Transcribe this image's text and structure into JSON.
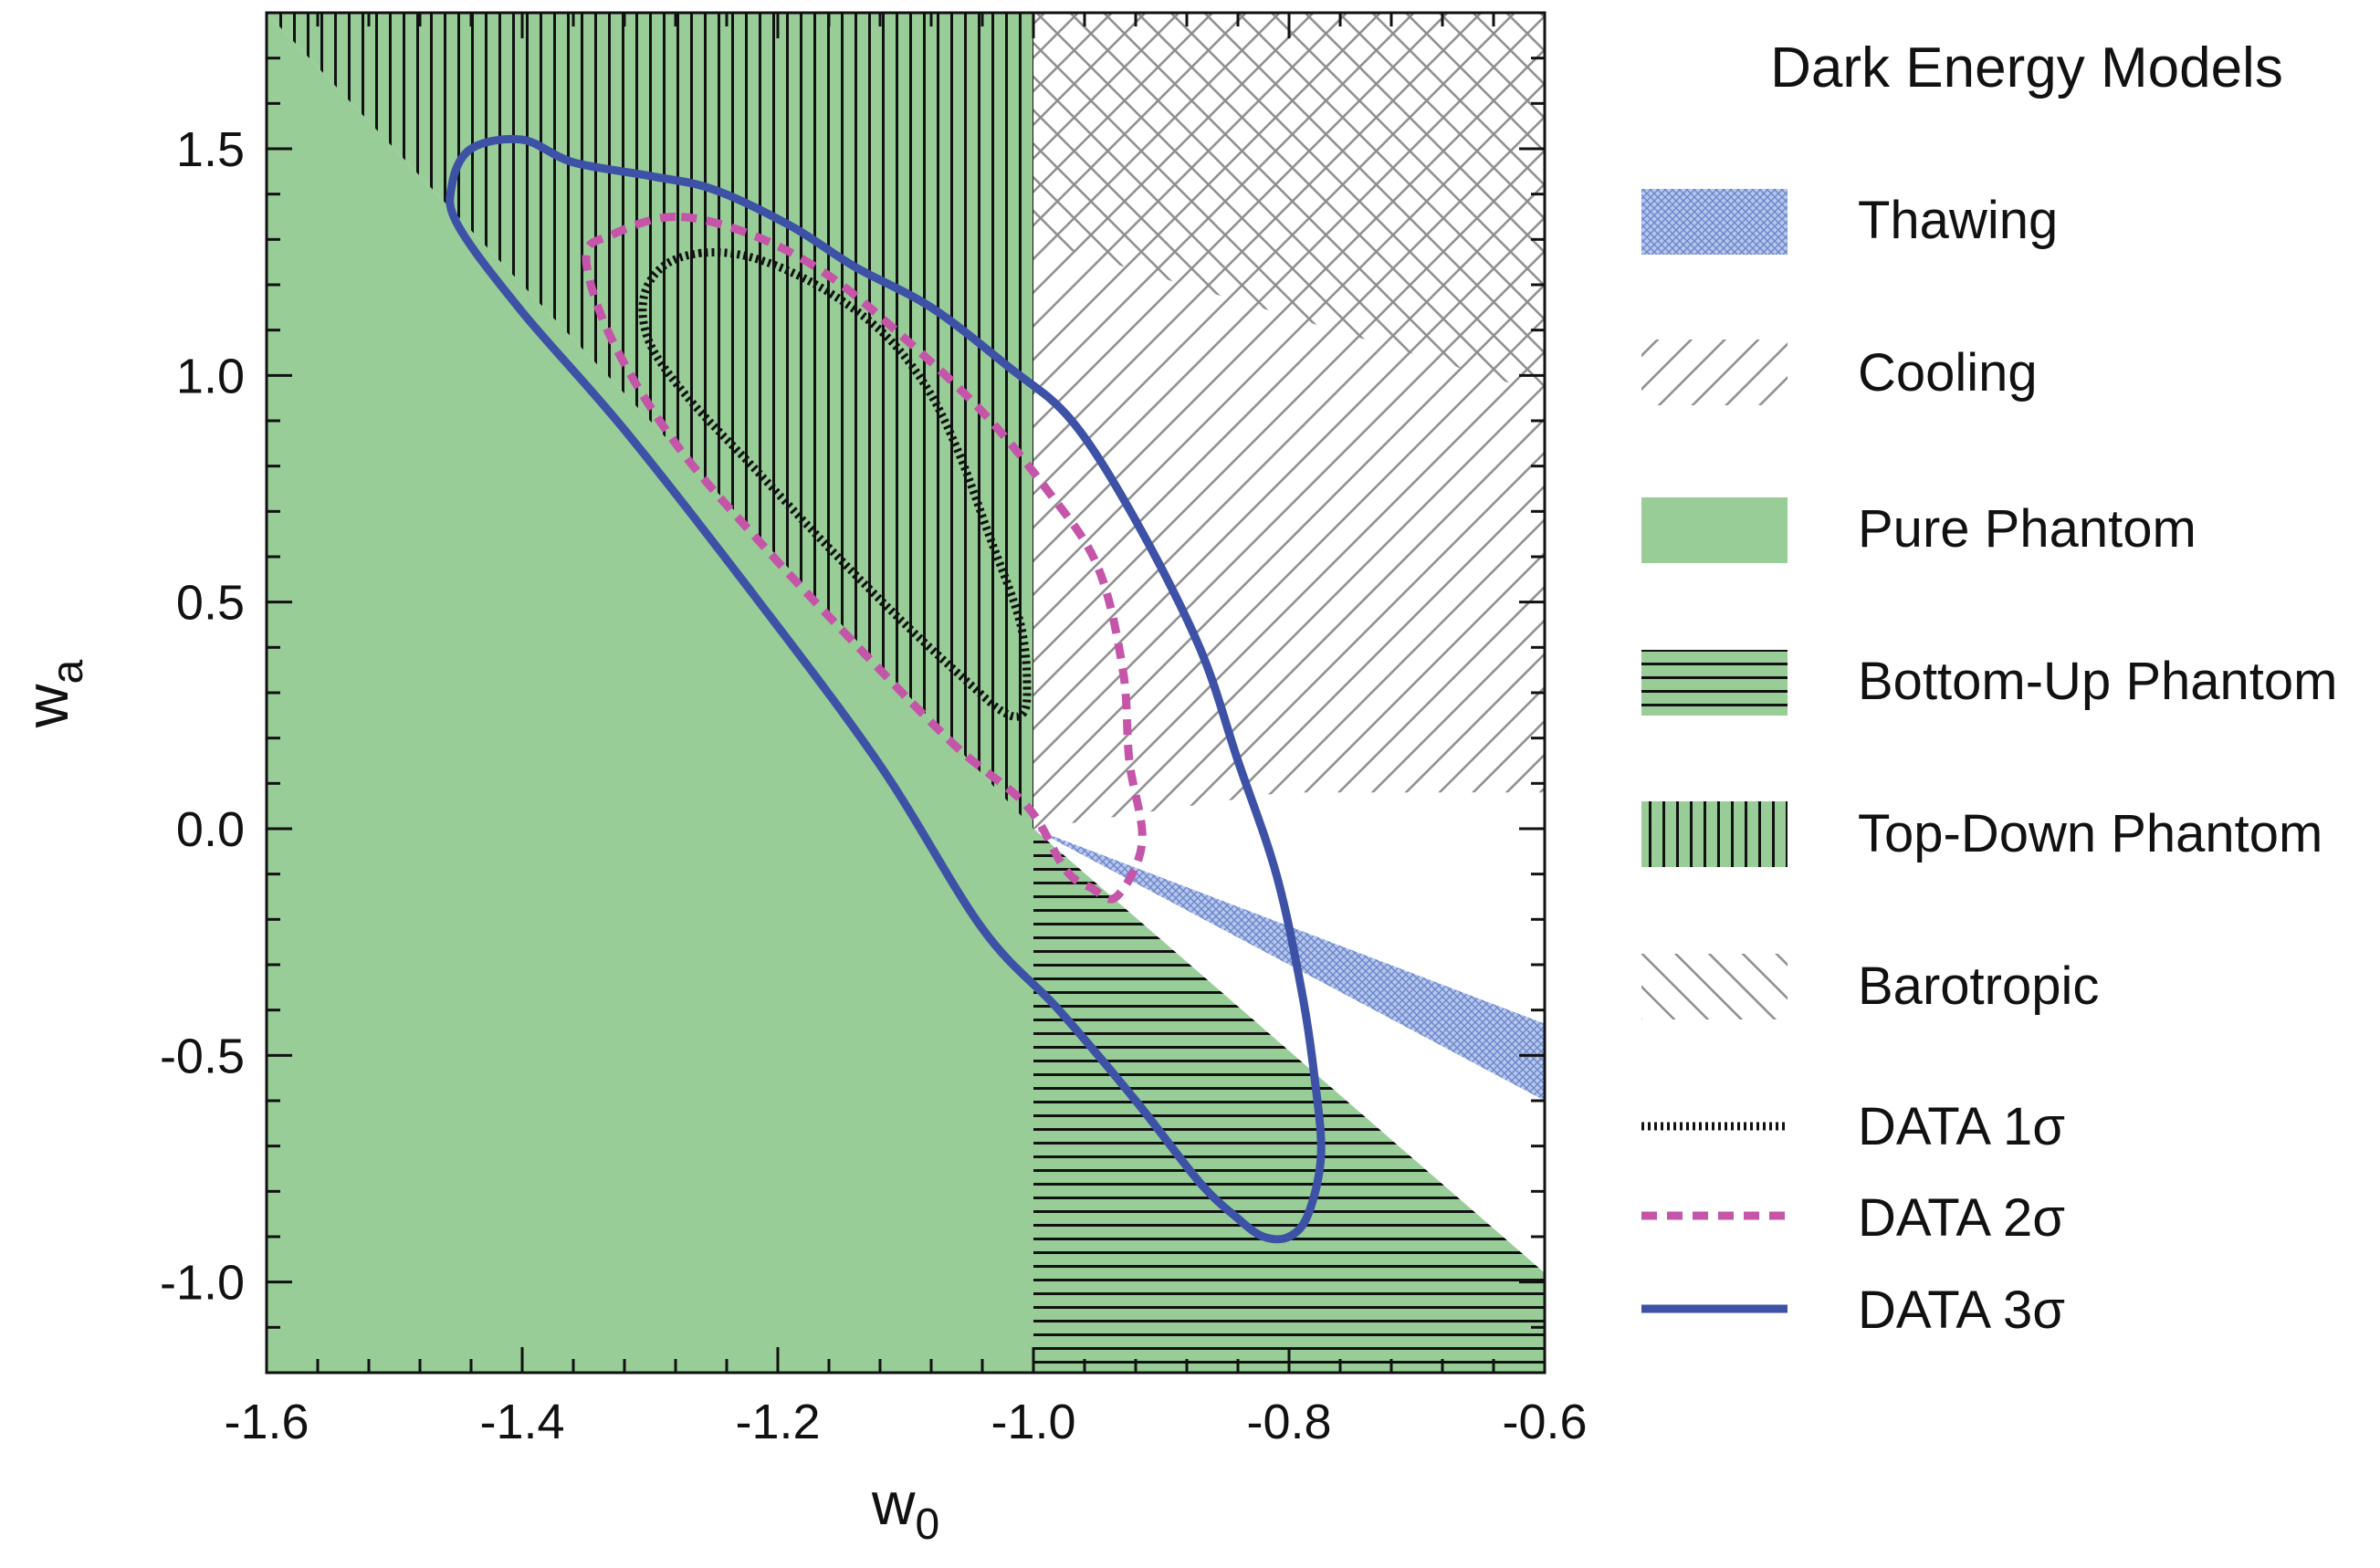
{
  "chart_data": {
    "type": "line",
    "title": "",
    "xlabel": "w",
    "xlabel_sub": "0",
    "ylabel": "w",
    "ylabel_sub": "a",
    "xlim": [
      -1.6,
      -0.6
    ],
    "ylim": [
      -1.2,
      1.8
    ],
    "xticks": [
      {
        "value": -1.6,
        "label": "-1.6"
      },
      {
        "value": -1.4,
        "label": "-1.4"
      },
      {
        "value": -1.2,
        "label": "-1.2"
      },
      {
        "value": -1.0,
        "label": "-1.0"
      },
      {
        "value": -0.8,
        "label": "-0.8"
      },
      {
        "value": -0.6,
        "label": "-0.6"
      }
    ],
    "yticks": [
      {
        "value": -1.0,
        "label": "-1.0"
      },
      {
        "value": -0.5,
        "label": "-0.5"
      },
      {
        "value": 0.0,
        "label": "0.0"
      },
      {
        "value": 0.5,
        "label": "0.5"
      },
      {
        "value": 1.0,
        "label": "1.0"
      },
      {
        "value": 1.5,
        "label": "1.5"
      }
    ],
    "grid": false,
    "legend": {
      "title": "Dark Energy Models",
      "placement": "right",
      "entries": [
        {
          "label": "Thawing",
          "style": "crosshatch",
          "color": "#7b95d2"
        },
        {
          "label": "Cooling",
          "style": "diagonal-hatch",
          "color": "#999999"
        },
        {
          "label": "Pure Phantom",
          "style": "solid-fill",
          "color": "#98cd98"
        },
        {
          "label": "Bottom-Up Phantom",
          "style": "horizontal-hatch",
          "color": "#98cd98"
        },
        {
          "label": "Top-Down Phantom",
          "style": "vertical-hatch",
          "color": "#98cd98"
        },
        {
          "label": "Barotropic",
          "style": "diagonal-hatch-reverse",
          "color": "#999999"
        },
        {
          "label": "DATA 1σ",
          "style": "dotted-line",
          "color": "#111111"
        },
        {
          "label": "DATA 2σ",
          "style": "dashed-line",
          "color": "#c455a8"
        },
        {
          "label": "DATA 3σ",
          "style": "solid-line",
          "color": "#3d52a6"
        }
      ]
    },
    "regions": [
      {
        "name": "Pure Phantom",
        "polygon": [
          [
            -1.6,
            1.8
          ],
          [
            -1.0,
            0.0
          ],
          [
            -1.0,
            -1.2
          ],
          [
            -1.6,
            -1.2
          ]
        ]
      },
      {
        "name": "Top-Down Phantom",
        "polygon": [
          [
            -1.6,
            1.8
          ],
          [
            -1.0,
            1.8
          ],
          [
            -1.0,
            0.0
          ]
        ]
      },
      {
        "name": "Bottom-Up Phantom",
        "polygon": [
          [
            -1.0,
            0.0
          ],
          [
            -0.6,
            -0.98
          ],
          [
            -0.6,
            -1.2
          ],
          [
            -1.0,
            -1.2
          ]
        ]
      },
      {
        "name": "Cooling",
        "polygon": [
          [
            -1.0,
            1.8
          ],
          [
            -0.6,
            1.8
          ],
          [
            -0.6,
            0.08
          ],
          [
            -0.805,
            0.08
          ],
          [
            -1.0,
            0.0
          ]
        ]
      },
      {
        "name": "Barotropic",
        "polygon": [
          [
            -1.0,
            1.8
          ],
          [
            -0.6,
            1.8
          ],
          [
            -0.6,
            0.96
          ],
          [
            -1.0,
            1.3
          ]
        ]
      },
      {
        "name": "Thawing",
        "polygon": [
          [
            -1.0,
            0.0
          ],
          [
            -0.6,
            -0.43
          ],
          [
            -0.6,
            -0.6
          ]
        ]
      }
    ],
    "series": [
      {
        "name": "DATA 1σ",
        "color": "#111111",
        "style": "dotted",
        "x": [
          -1.26,
          -1.29,
          -1.305,
          -1.3,
          -1.27,
          -1.22,
          -1.16,
          -1.1,
          -1.05,
          -1.025,
          -1.01,
          -1.005,
          -1.01,
          -1.035,
          -1.06,
          -1.085,
          -1.12,
          -1.17,
          -1.22,
          -1.26
        ],
        "y": [
          1.27,
          1.24,
          1.17,
          1.07,
          0.95,
          0.8,
          0.62,
          0.45,
          0.32,
          0.26,
          0.25,
          0.3,
          0.45,
          0.65,
          0.84,
          0.98,
          1.1,
          1.2,
          1.26,
          1.27
        ]
      },
      {
        "name": "DATA 2σ",
        "color": "#c455a8",
        "style": "dashed",
        "x": [
          -1.28,
          -1.33,
          -1.35,
          -1.33,
          -1.28,
          -1.21,
          -1.13,
          -1.06,
          -1.005,
          -0.975,
          -0.955,
          -0.935,
          -0.915,
          -0.925,
          -0.93,
          -0.95,
          -0.99,
          -1.04,
          -1.1,
          -1.16,
          -1.22,
          -1.28
        ],
        "y": [
          1.35,
          1.31,
          1.26,
          1.08,
          0.85,
          0.62,
          0.38,
          0.18,
          0.05,
          -0.09,
          -0.13,
          -0.15,
          -0.03,
          0.15,
          0.35,
          0.58,
          0.75,
          0.92,
          1.08,
          1.22,
          1.31,
          1.35
        ]
      },
      {
        "name": "DATA 3σ",
        "color": "#3d52a6",
        "style": "solid",
        "x": [
          -1.4,
          -1.44,
          -1.455,
          -1.45,
          -1.4,
          -1.32,
          -1.22,
          -1.12,
          -1.04,
          -0.98,
          -0.92,
          -0.87,
          -0.84,
          -0.82,
          -0.8,
          -0.785,
          -0.775,
          -0.78,
          -0.79,
          -0.81,
          -0.84,
          -0.87,
          -0.92,
          -0.97,
          -1.02,
          -1.08,
          -1.14,
          -1.19,
          -1.25,
          -1.3,
          -1.36,
          -1.4
        ],
        "y": [
          1.52,
          1.5,
          1.42,
          1.33,
          1.14,
          0.88,
          0.52,
          0.14,
          -0.22,
          -0.4,
          -0.6,
          -0.78,
          -0.86,
          -0.9,
          -0.9,
          -0.85,
          -0.72,
          -0.55,
          -0.36,
          -0.1,
          0.15,
          0.4,
          0.68,
          0.9,
          1.02,
          1.15,
          1.24,
          1.33,
          1.41,
          1.44,
          1.47,
          1.52
        ]
      }
    ]
  }
}
